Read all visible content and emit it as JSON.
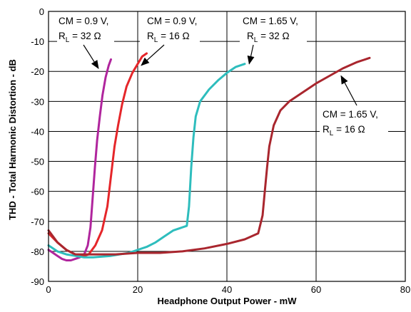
{
  "chart_data": {
    "type": "line",
    "xlabel": "Headphone Output Power - mW",
    "ylabel": "THD - Total Harmonic Distortion - dB",
    "xlim": [
      0,
      80
    ],
    "ylim": [
      -90,
      0
    ],
    "x_ticks": [
      "0",
      "20",
      "40",
      "60",
      "80"
    ],
    "y_ticks": [
      "0",
      "-10",
      "-20",
      "-30",
      "-40",
      "-50",
      "-60",
      "-70",
      "-80",
      "-90"
    ],
    "x_tick_values": [
      0,
      20,
      40,
      60,
      80
    ],
    "y_tick_values": [
      0,
      -10,
      -20,
      -30,
      -40,
      -50,
      -60,
      -70,
      -80,
      -90
    ],
    "grid": true,
    "series": [
      {
        "color": "#b0259d",
        "x": [
          0,
          1,
          2,
          3,
          4,
          5,
          6,
          7,
          8,
          8.8,
          9.4,
          9.9,
          10.4,
          10.9,
          11.5,
          12.1,
          12.8,
          13.5,
          14
        ],
        "y": [
          -79.5,
          -80.5,
          -81.5,
          -82.5,
          -83,
          -83,
          -82.5,
          -82,
          -81,
          -78,
          -72,
          -62,
          -52,
          -43,
          -35,
          -28,
          -22,
          -18,
          -16
        ]
      },
      {
        "color": "#e5262a",
        "x": [
          0,
          2,
          4,
          6,
          8,
          9,
          10.5,
          12,
          13.2,
          14,
          14.8,
          15.6,
          16.5,
          17.5,
          18.8,
          20,
          21,
          22
        ],
        "y": [
          -74,
          -77,
          -79.5,
          -81,
          -81.5,
          -81,
          -78,
          -73,
          -65,
          -55,
          -45,
          -38,
          -31,
          -25,
          -20.5,
          -17.5,
          -15,
          -14
        ]
      },
      {
        "color": "#2ebdbd",
        "x": [
          0,
          2,
          4,
          6,
          8,
          10,
          14,
          18,
          22,
          24,
          26,
          28,
          30,
          31,
          31.5,
          32,
          32.5,
          33,
          34,
          36,
          38,
          40,
          42,
          44
        ],
        "y": [
          -78,
          -80,
          -81,
          -81.5,
          -82,
          -82,
          -81.5,
          -80.5,
          -78.5,
          -77,
          -75,
          -73,
          -72,
          -71.5,
          -65,
          -52,
          -42,
          -35,
          -30,
          -26,
          -23,
          -20.5,
          -18.5,
          -17.5
        ]
      },
      {
        "color": "#a9262e",
        "x": [
          0,
          2,
          4,
          6,
          10,
          15,
          20,
          25,
          30,
          35,
          40,
          44,
          47,
          48,
          48.5,
          49,
          49.5,
          50.5,
          52,
          54,
          56,
          58,
          60,
          63,
          66,
          69,
          72
        ],
        "y": [
          -73,
          -77,
          -79.5,
          -81,
          -81,
          -81,
          -80.5,
          -80.5,
          -80,
          -79,
          -77.5,
          -76,
          -74,
          -68,
          -60,
          -52,
          -45,
          -38,
          -33,
          -30,
          -28,
          -26,
          -24,
          -21.5,
          -19,
          -17,
          -15.5
        ]
      }
    ],
    "annotations": [
      {
        "line1": "CM = 0.9 V,",
        "label_r": "R",
        "label_sub": "L",
        "label_val": " = 32 Ω",
        "x": 11.2,
        "y": -19
      },
      {
        "line1": "CM = 0.9 V,",
        "label_r": "R",
        "label_sub": "L",
        "label_val": " = 16 Ω",
        "x": 20.8,
        "y": -18
      },
      {
        "line1": "CM = 1.65 V,",
        "label_r": "R",
        "label_sub": "L",
        "label_val": " = 32 Ω",
        "x": 45,
        "y": -17.5
      },
      {
        "line1": "CM = 1.65 V,",
        "label_r": "R",
        "label_sub": "L",
        "label_val": " = 16 Ω",
        "x": 65.6,
        "y": -21.5
      }
    ]
  }
}
